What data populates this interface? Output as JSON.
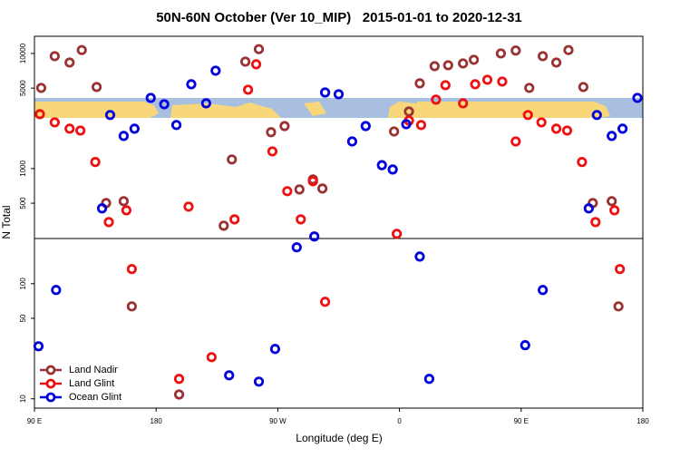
{
  "chart_data": {
    "type": "scatter",
    "title": "50N-60N October (Ver 10_MIP)   2015-01-01 to 2020-12-31",
    "xlabel": "Longitude (deg E)",
    "ylabel": "N Total",
    "xlim": [
      90,
      540
    ],
    "ylim": [
      8.3,
      14100
    ],
    "ylog": true,
    "legend": "lower left",
    "xticks": [
      {
        "value": 90,
        "label": "90 E"
      },
      180,
      {
        "value": 270,
        "label": "90 W"
      },
      {
        "value": 360,
        "label": "0"
      },
      {
        "value": 450,
        "label": "90 E"
      },
      {
        "value": 540,
        "label": "180"
      }
    ],
    "yticks": [
      10,
      50,
      100,
      500,
      1000,
      5000,
      10000
    ],
    "series": [
      {
        "name": "Land Nadir",
        "color": "#993333",
        "x": [
          95,
          105,
          116,
          125,
          136,
          143,
          156,
          162,
          197,
          230,
          236,
          246,
          256,
          265,
          275,
          286,
          296,
          303,
          356,
          367,
          375,
          386,
          396,
          407,
          415,
          435,
          446,
          456,
          466,
          476,
          485,
          496,
          503,
          517,
          522
        ],
        "values": [
          5020,
          9470,
          8340,
          10700,
          5110,
          502,
          521,
          63.5,
          10.9,
          319,
          1200,
          8490,
          10900,
          2070,
          2340,
          659,
          805,
          671,
          2100,
          3130,
          5500,
          7760,
          7900,
          8190,
          8810,
          10000,
          10600,
          5020,
          9470,
          8340,
          10700,
          5110,
          502,
          521,
          63.5
        ]
      },
      {
        "name": "Land Glint",
        "color": "#ee1111",
        "x": [
          94,
          105,
          116,
          124,
          135,
          145,
          158,
          162,
          197,
          204,
          221,
          238,
          248,
          254,
          266,
          277,
          287,
          296,
          305,
          358,
          367,
          376,
          387,
          394,
          407,
          416,
          425,
          436,
          446,
          455,
          465,
          476,
          484,
          495,
          505,
          519,
          523
        ],
        "values": [
          2970,
          2520,
          2220,
          2140,
          1140,
          343,
          434,
          134,
          14.9,
          467,
          23.0,
          362,
          4840,
          8050,
          1410,
          636,
          362,
          776,
          69.6,
          271,
          2610,
          2390,
          3970,
          5300,
          3690,
          5400,
          5910,
          5700,
          1720,
          2920,
          2520,
          2220,
          2140,
          1140,
          343,
          434,
          134
        ]
      },
      {
        "name": "Ocean Glint",
        "color": "#0000dd",
        "x": [
          93,
          106,
          140,
          146,
          156,
          164,
          176,
          186,
          195,
          206,
          217,
          224,
          234,
          256,
          268,
          284,
          297,
          305,
          315,
          325,
          335,
          347,
          355,
          365,
          375,
          382,
          453,
          466,
          500,
          506,
          517,
          525,
          536
        ],
        "values": [
          28.6,
          88.1,
          451,
          2920,
          1920,
          2220,
          4110,
          3620,
          2390,
          5400,
          3690,
          7080,
          16.0,
          14.1,
          27.1,
          207,
          257,
          4580,
          4420,
          1720,
          2340,
          1070,
          982,
          2430,
          172,
          14.9,
          29.2,
          88.1,
          451,
          2920,
          1920,
          2220,
          4110
        ]
      }
    ]
  }
}
